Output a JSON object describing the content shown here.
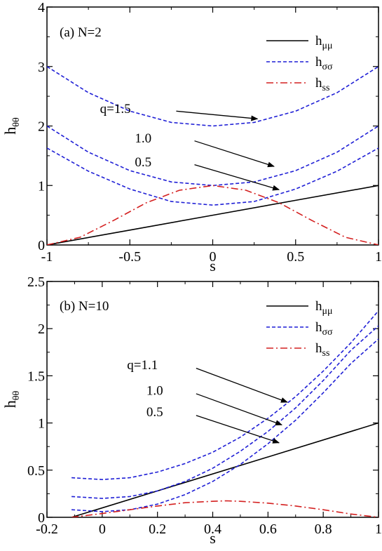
{
  "chart_data": [
    {
      "type": "line",
      "panel_label": "(a) N=2",
      "xlabel": "s",
      "ylabel_main": "h",
      "ylabel_sub": "θθ",
      "xlim": [
        -1,
        1
      ],
      "ylim": [
        0,
        4
      ],
      "xticks": [
        -1,
        -0.5,
        0,
        0.5,
        1
      ],
      "xtick_labels": [
        "-1",
        "-0.5",
        "0",
        "0.5",
        "1"
      ],
      "yticks": [
        0,
        1,
        2,
        3,
        4
      ],
      "ytick_labels": [
        "0",
        "1",
        "2",
        "3",
        "4"
      ],
      "grid": false,
      "legend_position": "top-right",
      "legend": [
        {
          "main": "h",
          "sub": "μμ",
          "style": "solid",
          "color": "#000000"
        },
        {
          "main": "h",
          "sub": "σσ",
          "style": "dashed",
          "color": "#1f1fd6"
        },
        {
          "main": "h",
          "sub": "ss",
          "style": "dashdot",
          "color": "#d42020"
        }
      ],
      "series": [
        {
          "group": "mu",
          "style": "solid",
          "color": "#000000",
          "x": [
            -1,
            -0.5,
            0,
            0.5,
            1
          ],
          "y": [
            0,
            0.25,
            0.5,
            0.75,
            1
          ]
        },
        {
          "group": "sigma",
          "q": "1.5",
          "style": "dashed",
          "color": "#1f1fd6",
          "x": [
            -1,
            -0.75,
            -0.5,
            -0.25,
            0,
            0.25,
            0.5,
            0.75,
            1
          ],
          "y": [
            3.0,
            2.56,
            2.25,
            2.06,
            2.0,
            2.06,
            2.25,
            2.56,
            3.0
          ]
        },
        {
          "group": "sigma",
          "q": "1.0",
          "style": "dashed",
          "color": "#1f1fd6",
          "x": [
            -1,
            -0.75,
            -0.5,
            -0.25,
            0,
            0.25,
            0.5,
            0.75,
            1
          ],
          "y": [
            2.0,
            1.56,
            1.25,
            1.06,
            1.0,
            1.06,
            1.25,
            1.56,
            2.0
          ]
        },
        {
          "group": "sigma",
          "q": "0.5",
          "style": "dashed",
          "color": "#1f1fd6",
          "x": [
            -1,
            -0.75,
            -0.5,
            -0.25,
            0,
            0.25,
            0.5,
            0.75,
            1
          ],
          "y": [
            1.63,
            1.24,
            0.94,
            0.73,
            0.67,
            0.73,
            0.94,
            1.24,
            1.63
          ]
        },
        {
          "group": "s",
          "style": "dashdot",
          "color": "#d42020",
          "x": [
            -1,
            -0.8,
            -0.6,
            -0.4,
            -0.2,
            0,
            0.2,
            0.4,
            0.6,
            0.8,
            1
          ],
          "y": [
            0,
            0.13,
            0.41,
            0.71,
            0.92,
            1.0,
            0.92,
            0.71,
            0.41,
            0.13,
            0
          ]
        }
      ],
      "annotations": [
        {
          "text": "q=1.5",
          "text_x": -0.68,
          "text_y": 2.22,
          "arrow_from": [
            -0.22,
            2.25
          ],
          "arrow_to": [
            0.27,
            2.12
          ]
        },
        {
          "text": "1.0",
          "text_x": -0.47,
          "text_y": 1.72,
          "arrow_from": [
            -0.11,
            1.75
          ],
          "arrow_to": [
            0.37,
            1.32
          ]
        },
        {
          "text": "0.5",
          "text_x": -0.47,
          "text_y": 1.32,
          "arrow_from": [
            -0.11,
            1.35
          ],
          "arrow_to": [
            0.4,
            0.93
          ]
        }
      ]
    },
    {
      "type": "line",
      "panel_label": "(b) N=10",
      "xlabel": "s",
      "ylabel_main": "h",
      "ylabel_sub": "θθ",
      "xlim": [
        -0.2,
        1
      ],
      "ylim": [
        0,
        2.5
      ],
      "xticks": [
        -0.2,
        0,
        0.2,
        0.4,
        0.6,
        0.8,
        1
      ],
      "xtick_labels": [
        "-0.2",
        "0",
        "0.2",
        "0.4",
        "0.6",
        "0.8",
        "1"
      ],
      "yticks": [
        0,
        0.5,
        1,
        1.5,
        2,
        2.5
      ],
      "ytick_labels": [
        "0",
        "0.5",
        "1",
        "1.5",
        "2",
        "2.5"
      ],
      "grid": false,
      "legend_position": "top-right",
      "legend": [
        {
          "main": "h",
          "sub": "μμ",
          "style": "solid",
          "color": "#000000"
        },
        {
          "main": "h",
          "sub": "σσ",
          "style": "dashed",
          "color": "#1f1fd6"
        },
        {
          "main": "h",
          "sub": "ss",
          "style": "dashdot",
          "color": "#d42020"
        }
      ],
      "series": [
        {
          "group": "mu",
          "style": "solid",
          "color": "#000000",
          "x": [
            -0.111,
            1
          ],
          "y": [
            0,
            1
          ]
        },
        {
          "group": "sigma",
          "q": "1.1",
          "style": "dashed",
          "color": "#1f1fd6",
          "x": [
            -0.111,
            0,
            0.1,
            0.2,
            0.3,
            0.4,
            0.5,
            0.6,
            0.7,
            0.8,
            0.9,
            1
          ],
          "y": [
            0.42,
            0.4,
            0.42,
            0.48,
            0.57,
            0.69,
            0.85,
            1.05,
            1.28,
            1.55,
            1.85,
            2.19
          ]
        },
        {
          "group": "sigma",
          "q": "1.0",
          "style": "dashed",
          "color": "#1f1fd6",
          "x": [
            -0.111,
            0,
            0.1,
            0.2,
            0.3,
            0.4,
            0.5,
            0.6,
            0.7,
            0.8,
            0.9,
            1
          ],
          "y": [
            0.22,
            0.2,
            0.22,
            0.28,
            0.38,
            0.52,
            0.7,
            0.91,
            1.16,
            1.45,
            1.77,
            2.03
          ]
        },
        {
          "group": "sigma",
          "q": "0.5",
          "style": "dashed",
          "color": "#1f1fd6",
          "x": [
            -0.111,
            0,
            0.1,
            0.2,
            0.3,
            0.4,
            0.5,
            0.6,
            0.7,
            0.8,
            0.9,
            1
          ],
          "y": [
            0.08,
            0.06,
            0.08,
            0.14,
            0.24,
            0.38,
            0.56,
            0.78,
            1.03,
            1.32,
            1.63,
            1.89
          ]
        },
        {
          "group": "s",
          "style": "dashdot",
          "color": "#d42020",
          "x": [
            -0.111,
            0,
            0.1,
            0.2,
            0.3,
            0.4,
            0.45,
            0.5,
            0.6,
            0.7,
            0.8,
            0.9,
            1
          ],
          "y": [
            0,
            0.04,
            0.08,
            0.12,
            0.155,
            0.17,
            0.175,
            0.17,
            0.15,
            0.12,
            0.08,
            0.035,
            0
          ]
        }
      ],
      "annotations": [
        {
          "text": "q=1.1",
          "text_x": 0.09,
          "text_y": 1.57,
          "arrow_from": [
            0.34,
            1.58
          ],
          "arrow_to": [
            0.67,
            1.22
          ]
        },
        {
          "text": "1.0",
          "text_x": 0.16,
          "text_y": 1.3,
          "arrow_from": [
            0.34,
            1.31
          ],
          "arrow_to": [
            0.65,
            0.98
          ]
        },
        {
          "text": "0.5",
          "text_x": 0.16,
          "text_y": 1.07,
          "arrow_from": [
            0.34,
            1.08
          ],
          "arrow_to": [
            0.64,
            0.79
          ]
        }
      ]
    }
  ]
}
